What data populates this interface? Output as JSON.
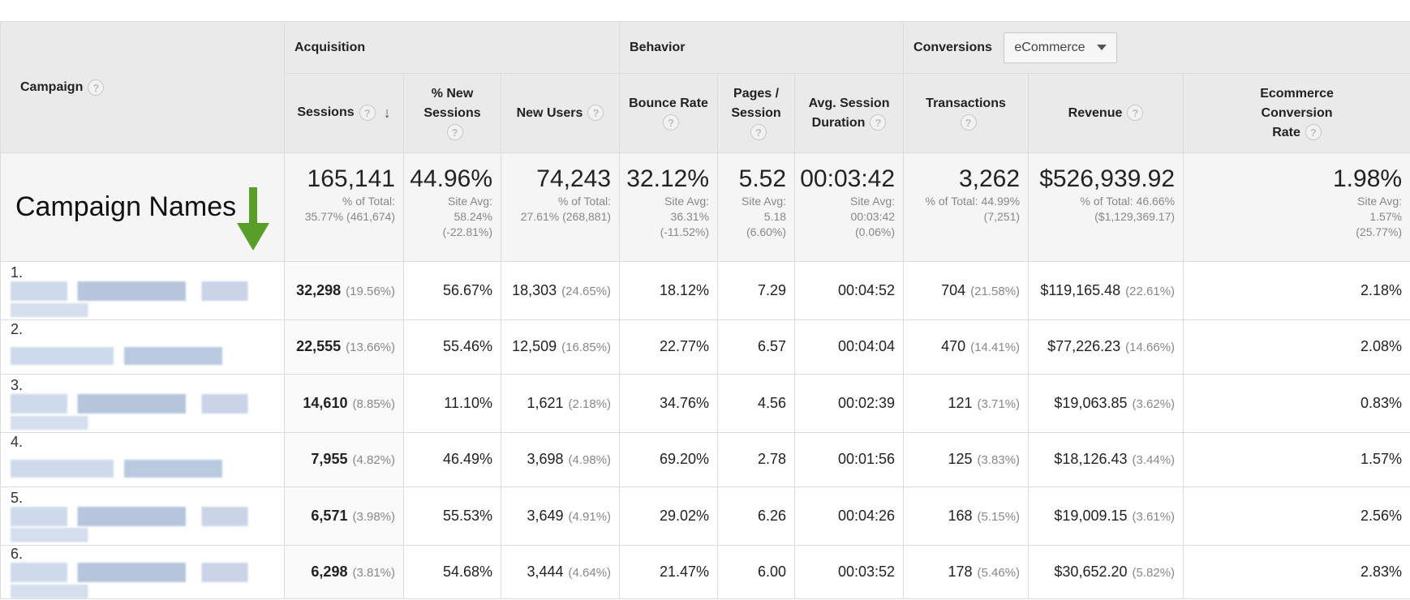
{
  "table": {
    "campaign_header": "Campaign",
    "groups": {
      "acquisition": "Acquisition",
      "behavior": "Behavior",
      "conversions": "Conversions"
    },
    "conversion_dropdown": {
      "selected": "eCommerce"
    },
    "columns": {
      "sessions": "Sessions",
      "pct_new_sessions_1": "% New",
      "pct_new_sessions_2": "Sessions",
      "new_users": "New Users",
      "bounce_rate": "Bounce Rate",
      "pages_session_1": "Pages /",
      "pages_session_2": "Session",
      "avg_duration_1": "Avg. Session",
      "avg_duration_2": "Duration",
      "transactions": "Transactions",
      "revenue": "Revenue",
      "conv_rate_1": "Ecommerce",
      "conv_rate_2": "Conversion",
      "conv_rate_3": "Rate"
    },
    "help_glyph": "?",
    "sort_glyph": "↓",
    "annotation": "Campaign Names",
    "totals": {
      "sessions": {
        "value": "165,141",
        "l1": "% of Total:",
        "l2": "35.77% (461,674)"
      },
      "pct_new_sessions": {
        "value": "44.96%",
        "l1": "Site Avg:",
        "l2": "58.24%",
        "l3": "(-22.81%)"
      },
      "new_users": {
        "value": "74,243",
        "l1": "% of Total:",
        "l2": "27.61% (268,881)"
      },
      "bounce_rate": {
        "value": "32.12%",
        "l1": "Site Avg:",
        "l2": "36.31%",
        "l3": "(-11.52%)"
      },
      "pages_session": {
        "value": "5.52",
        "l1": "Site Avg:",
        "l2": "5.18",
        "l3": "(6.60%)"
      },
      "avg_duration": {
        "value": "00:03:42",
        "l1": "Site Avg:",
        "l2": "00:03:42",
        "l3": "(0.06%)"
      },
      "transactions": {
        "value": "3,262",
        "l1": "% of Total: 44.99%",
        "l2": "(7,251)"
      },
      "revenue": {
        "value": "$526,939.92",
        "l1": "% of Total: 46.66%",
        "l2": "($1,129,369.17)"
      },
      "conv_rate": {
        "value": "1.98%",
        "l1": "Site Avg:",
        "l2": "1.57%",
        "l3": "(25.77%)"
      }
    },
    "rows": [
      {
        "num": "1.",
        "sessions": "32,298",
        "sessions_pct": "(19.56%)",
        "pct_new": "56.67%",
        "new_users": "18,303",
        "new_users_pct": "(24.65%)",
        "bounce": "18.12%",
        "pages": "7.29",
        "duration": "00:04:52",
        "transactions": "704",
        "transactions_pct": "(21.58%)",
        "revenue": "$119,165.48",
        "revenue_pct": "(22.61%)",
        "conv": "2.18%"
      },
      {
        "num": "2.",
        "sessions": "22,555",
        "sessions_pct": "(13.66%)",
        "pct_new": "55.46%",
        "new_users": "12,509",
        "new_users_pct": "(16.85%)",
        "bounce": "22.77%",
        "pages": "6.57",
        "duration": "00:04:04",
        "transactions": "470",
        "transactions_pct": "(14.41%)",
        "revenue": "$77,226.23",
        "revenue_pct": "(14.66%)",
        "conv": "2.08%"
      },
      {
        "num": "3.",
        "sessions": "14,610",
        "sessions_pct": "(8.85%)",
        "pct_new": "11.10%",
        "new_users": "1,621",
        "new_users_pct": "(2.18%)",
        "bounce": "34.76%",
        "pages": "4.56",
        "duration": "00:02:39",
        "transactions": "121",
        "transactions_pct": "(3.71%)",
        "revenue": "$19,063.85",
        "revenue_pct": "(3.62%)",
        "conv": "0.83%"
      },
      {
        "num": "4.",
        "sessions": "7,955",
        "sessions_pct": "(4.82%)",
        "pct_new": "46.49%",
        "new_users": "3,698",
        "new_users_pct": "(4.98%)",
        "bounce": "69.20%",
        "pages": "2.78",
        "duration": "00:01:56",
        "transactions": "125",
        "transactions_pct": "(3.83%)",
        "revenue": "$18,126.43",
        "revenue_pct": "(3.44%)",
        "conv": "1.57%"
      },
      {
        "num": "5.",
        "sessions": "6,571",
        "sessions_pct": "(3.98%)",
        "pct_new": "55.53%",
        "new_users": "3,649",
        "new_users_pct": "(4.91%)",
        "bounce": "29.02%",
        "pages": "6.26",
        "duration": "00:04:26",
        "transactions": "168",
        "transactions_pct": "(5.15%)",
        "revenue": "$19,009.15",
        "revenue_pct": "(3.61%)",
        "conv": "2.56%"
      },
      {
        "num": "6.",
        "sessions": "6,298",
        "sessions_pct": "(3.81%)",
        "pct_new": "54.68%",
        "new_users": "3,444",
        "new_users_pct": "(4.64%)",
        "bounce": "21.47%",
        "pages": "6.00",
        "duration": "00:03:52",
        "transactions": "178",
        "transactions_pct": "(5.46%)",
        "revenue": "$30,652.20",
        "revenue_pct": "(5.82%)",
        "conv": "2.83%"
      }
    ]
  },
  "colors": {
    "header_bg": "#eaeaea",
    "totals_bg": "#f5f5f5",
    "border": "#dcdcdc",
    "arrow_green": "#5a9e2a"
  },
  "icons": {
    "help": "help-icon",
    "sort": "sort-desc-icon",
    "annotation_arrow": "green-down-arrow-icon",
    "dropdown": "caret-down-icon"
  }
}
